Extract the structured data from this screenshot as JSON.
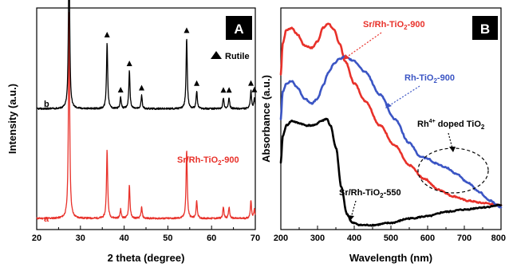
{
  "chart_data": [
    {
      "panel": "A",
      "type": "line",
      "xlabel": "2 theta (degree)",
      "ylabel": "Intensity (a.u.)",
      "xlim": [
        20,
        70
      ],
      "xticks": [
        20,
        30,
        40,
        50,
        60,
        70
      ],
      "yticks_shown": false,
      "legend": {
        "marker": "filled-triangle",
        "label": "Rutile",
        "placement": "top-right"
      },
      "rutile_peaks_2theta": [
        27.4,
        36.1,
        39.2,
        41.2,
        44.0,
        54.3,
        56.6,
        62.7,
        64.0,
        69.0,
        69.8
      ],
      "series": [
        {
          "label": "a",
          "name": "Sr/Rh-TiO2-900",
          "color": "#e8312a",
          "baseline": 0.05,
          "peaks": [
            {
              "x": 27.4,
              "h": 0.94
            },
            {
              "x": 36.1,
              "h": 0.31
            },
            {
              "x": 39.2,
              "h": 0.04
            },
            {
              "x": 41.2,
              "h": 0.15
            },
            {
              "x": 44.0,
              "h": 0.05
            },
            {
              "x": 54.3,
              "h": 0.31
            },
            {
              "x": 56.6,
              "h": 0.08
            },
            {
              "x": 62.7,
              "h": 0.05
            },
            {
              "x": 64.0,
              "h": 0.05
            },
            {
              "x": 69.0,
              "h": 0.08
            },
            {
              "x": 69.8,
              "h": 0.04
            }
          ]
        },
        {
          "label": "b",
          "name": "",
          "color": "#000000",
          "baseline": 0.545,
          "peaks": [
            {
              "x": 27.4,
              "h": 0.76
            },
            {
              "x": 36.1,
              "h": 0.3
            },
            {
              "x": 39.2,
              "h": 0.05
            },
            {
              "x": 41.2,
              "h": 0.17
            },
            {
              "x": 44.0,
              "h": 0.06
            },
            {
              "x": 54.3,
              "h": 0.32
            },
            {
              "x": 56.6,
              "h": 0.08
            },
            {
              "x": 62.7,
              "h": 0.05
            },
            {
              "x": 64.0,
              "h": 0.05
            },
            {
              "x": 69.0,
              "h": 0.08
            },
            {
              "x": 69.8,
              "h": 0.05
            }
          ]
        }
      ],
      "annotations": [
        "Sr/Rh-TiO2-900",
        "a",
        "b",
        "Rutile"
      ],
      "panel_label": "A"
    },
    {
      "panel": "B",
      "type": "line",
      "xlabel": "Wavelength (nm)",
      "ylabel": "Absorbance (a.u.)",
      "xlim": [
        200,
        800
      ],
      "xticks": [
        200,
        300,
        400,
        500,
        600,
        700,
        800
      ],
      "yticks_shown": false,
      "ylim": [
        0,
        1
      ],
      "series": [
        {
          "name": "Sr/Rh-TiO2-900",
          "color": "#e8312a",
          "x": [
            200,
            205,
            215,
            230,
            245,
            265,
            285,
            300,
            315,
            330,
            345,
            360,
            375,
            400,
            430,
            470,
            510,
            550,
            590,
            630,
            670,
            710,
            750,
            800
          ],
          "y": [
            0.7,
            0.84,
            0.9,
            0.91,
            0.88,
            0.83,
            0.82,
            0.85,
            0.91,
            0.93,
            0.9,
            0.84,
            0.76,
            0.66,
            0.58,
            0.47,
            0.38,
            0.29,
            0.23,
            0.18,
            0.15,
            0.13,
            0.12,
            0.11
          ]
        },
        {
          "name": "Rh-TiO2-900",
          "color": "#3b55c4",
          "x": [
            200,
            205,
            215,
            230,
            245,
            265,
            285,
            300,
            315,
            330,
            345,
            360,
            375,
            400,
            430,
            470,
            510,
            550,
            580,
            600,
            620,
            650,
            680,
            710,
            740,
            770,
            800
          ],
          "y": [
            0.5,
            0.62,
            0.66,
            0.67,
            0.64,
            0.59,
            0.57,
            0.59,
            0.65,
            0.71,
            0.75,
            0.77,
            0.78,
            0.76,
            0.71,
            0.61,
            0.5,
            0.39,
            0.33,
            0.32,
            0.3,
            0.28,
            0.25,
            0.21,
            0.17,
            0.13,
            0.1
          ]
        },
        {
          "name": "Sr/Rh-TiO2-550",
          "color": "#000000",
          "x": [
            200,
            205,
            215,
            230,
            250,
            270,
            290,
            310,
            325,
            335,
            350,
            365,
            380,
            395,
            420,
            450,
            500,
            550,
            600,
            650,
            700,
            750,
            800
          ],
          "y": [
            0.3,
            0.42,
            0.47,
            0.49,
            0.48,
            0.47,
            0.47,
            0.49,
            0.5,
            0.47,
            0.37,
            0.19,
            0.07,
            0.03,
            0.02,
            0.02,
            0.03,
            0.05,
            0.06,
            0.08,
            0.09,
            0.1,
            0.11
          ]
        }
      ],
      "annotations": [
        {
          "text": "Sr/Rh-TiO2-900",
          "color": "#e8312a"
        },
        {
          "text": "Rh-TiO2-900",
          "color": "#3b55c4"
        },
        {
          "text": "Sr/Rh-TiO2-550",
          "color": "#000000"
        },
        {
          "text": "Rh4+ doped TiO2",
          "color": "#000000"
        }
      ],
      "panel_label": "B"
    }
  ],
  "labels": {
    "A": {
      "panel": "A",
      "ylabel": "Intensity (a.u.)",
      "xlabel": "2 theta (degree)",
      "ticks": [
        "20",
        "30",
        "40",
        "50",
        "60",
        "70"
      ],
      "legend": "Rutile",
      "curve_a": "a",
      "curve_b": "b",
      "red_base": "Sr/Rh-TiO",
      "red_sub": "2",
      "red_tail": "-900"
    },
    "B": {
      "panel": "B",
      "ylabel": "Absorbance (a.u.)",
      "xlabel": "Wavelength (nm)",
      "ticks": [
        "200",
        "300",
        "400",
        "500",
        "600",
        "700",
        "800"
      ],
      "red_base": "Sr/Rh-TiO",
      "red_sub": "2",
      "red_tail": "-900",
      "blue_base": "Rh-TiO",
      "blue_sub": "2",
      "blue_tail": "-900",
      "black_base": "Sr/Rh-TiO",
      "black_sub": "2",
      "black_tail": "-550",
      "rh_base": "Rh",
      "rh_sup": "4+",
      "rh_mid": " doped TiO",
      "rh_sub": "2"
    }
  }
}
